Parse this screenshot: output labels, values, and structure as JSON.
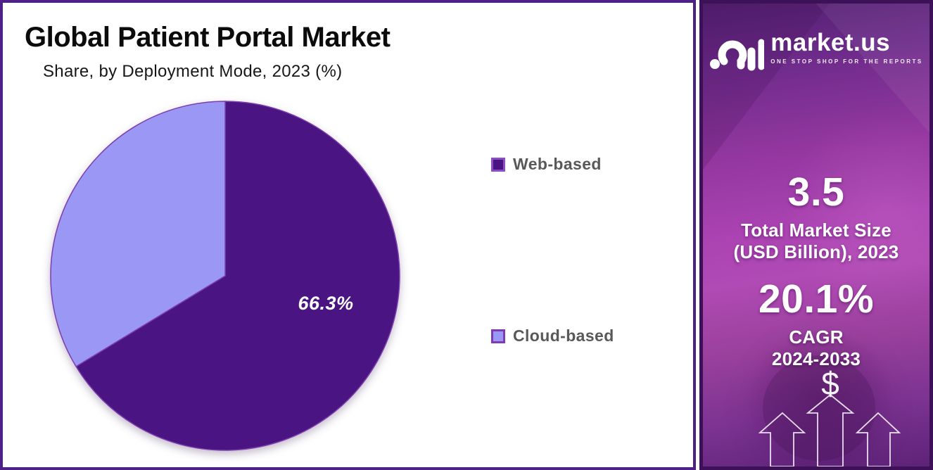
{
  "page": {
    "title": "Global Patient Portal Market",
    "subtitle": "Share, by Deployment Mode, 2023 (%)"
  },
  "chart_data": {
    "type": "pie",
    "title": "Global Patient Portal Market",
    "subtitle": "Share, by Deployment Mode, 2023 (%)",
    "labels": [
      "Web-based",
      "Cloud-based"
    ],
    "values": [
      66.3,
      33.7
    ],
    "colors": [
      "#4a1582",
      "#9b97f5"
    ],
    "slice_stroke": "#7d3dae",
    "data_label_shown": "66.3%",
    "start_angle_deg": 0,
    "direction": "clockwise",
    "legend_position": "right"
  },
  "legend": {
    "items": [
      {
        "label": "Web-based",
        "color": "#4a1582",
        "border": "#8a4fc0"
      },
      {
        "label": "Cloud-based",
        "color": "#9b97f5",
        "border": "#7d3dae"
      }
    ]
  },
  "sidebar": {
    "brand": {
      "name": "market.us",
      "tagline": "ONE STOP SHOP FOR THE REPORTS"
    },
    "stats": [
      {
        "value": "3.5",
        "lines": [
          "Total Market Size",
          "(USD Billion), 2023"
        ]
      },
      {
        "value": "20.1%",
        "lines": [
          "CAGR",
          "2024-2033"
        ]
      }
    ],
    "dollar_symbol": "$"
  },
  "colors": {
    "panel_border": "#4e2186",
    "sidebar_border": "#3c1157",
    "legend_text": "#595959"
  }
}
